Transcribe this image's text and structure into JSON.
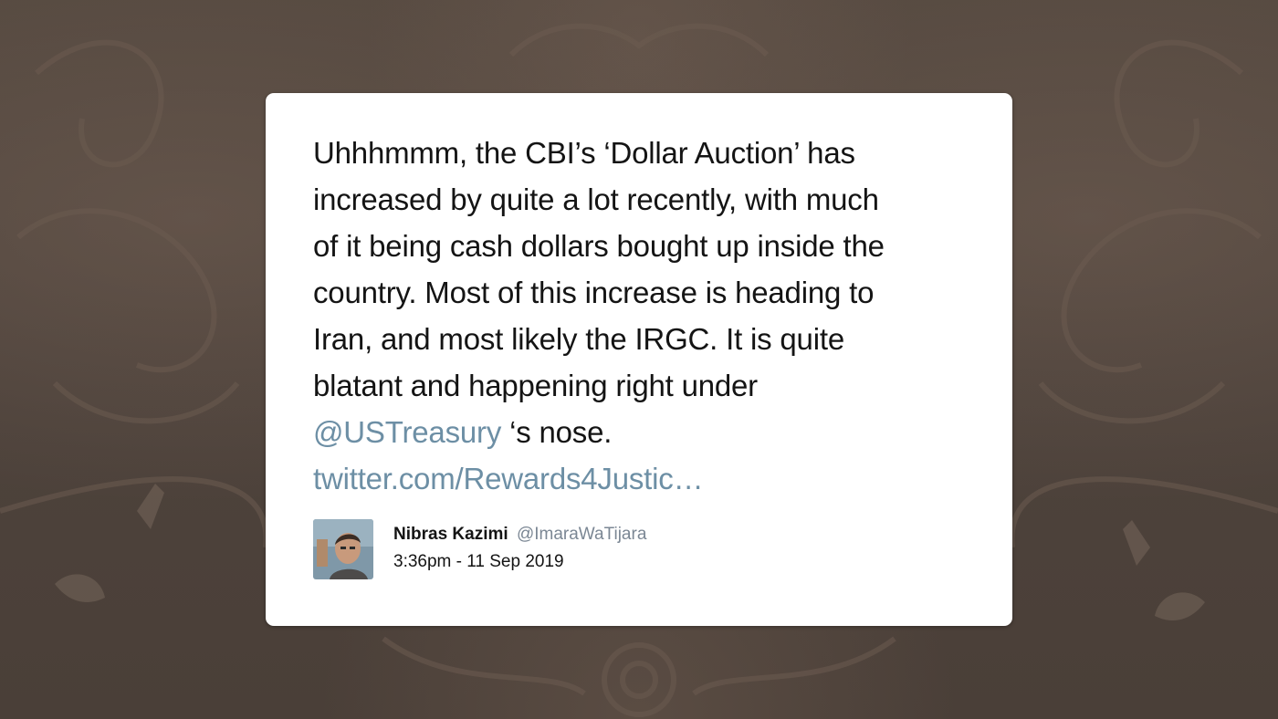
{
  "tweet": {
    "lines": [
      "Uhhhmmm, the CBI’s ‘Dollar Auction’ has",
      "increased by quite a lot recently, with much",
      "of it being cash dollars bought up inside the",
      "country. Most of this increase is heading to",
      "Iran, and most likely the IRGC. It is quite",
      "blatant and happening right under"
    ],
    "mention": "@USTreasury",
    "after_mention": " ‘s nose.",
    "link": "twitter.com/Rewards4Justic…",
    "link_color": "#6d8fa5"
  },
  "author": {
    "name": "Nibras Kazimi",
    "handle": "@ImaraWaTijara",
    "timestamp": "3:36pm - 11 Sep 2019"
  },
  "colors": {
    "background": "#4a3f38",
    "card": "#ffffff",
    "text": "#141414",
    "handle": "#7b8794"
  }
}
